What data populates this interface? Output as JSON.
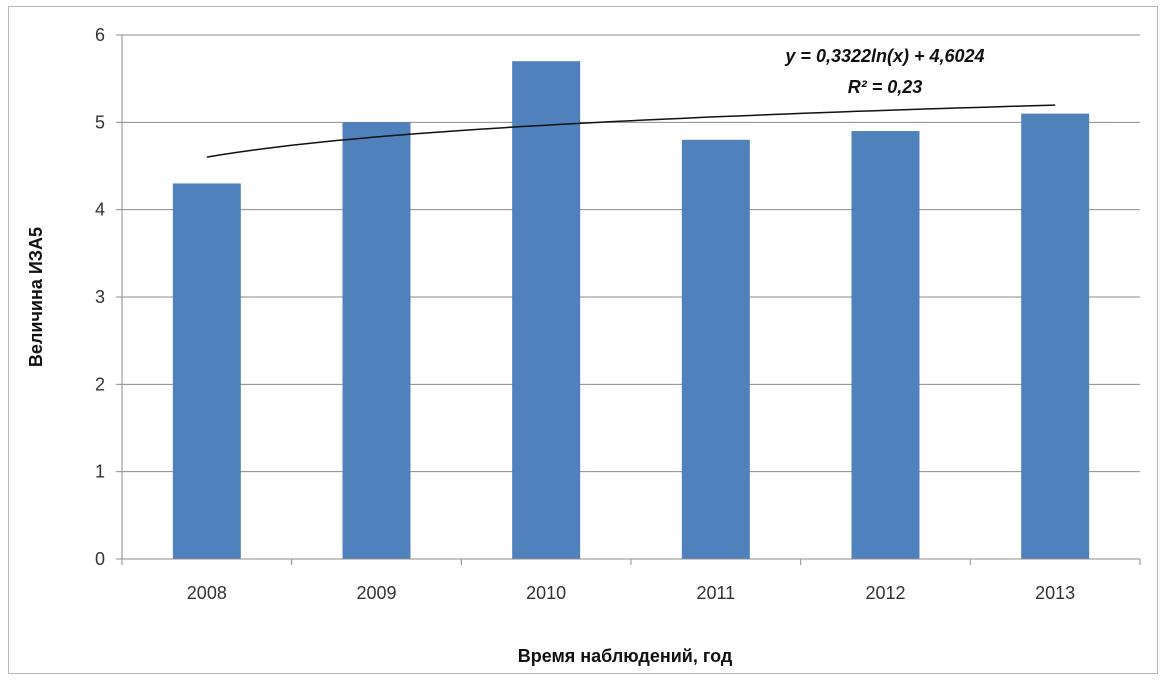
{
  "chart_data": {
    "type": "bar",
    "categories": [
      "2008",
      "2009",
      "2010",
      "2011",
      "2012",
      "2013"
    ],
    "values": [
      4.3,
      5.0,
      5.7,
      4.8,
      4.9,
      5.1
    ],
    "xlabel": "Время наблюдений, год",
    "ylabel": "Величина ИЗА5",
    "ylim": [
      0,
      6
    ],
    "yticks": [
      "0",
      "1",
      "2",
      "3",
      "4",
      "5",
      "6"
    ],
    "grid": true,
    "legend": "none",
    "bar_color": "#4f81bd",
    "trendline": {
      "type": "logarithmic",
      "a": 0.3322,
      "b": 4.6024,
      "equation": "y = 0,3322ln(x) + 4,6024",
      "r2_label": "R² = 0,23"
    }
  }
}
